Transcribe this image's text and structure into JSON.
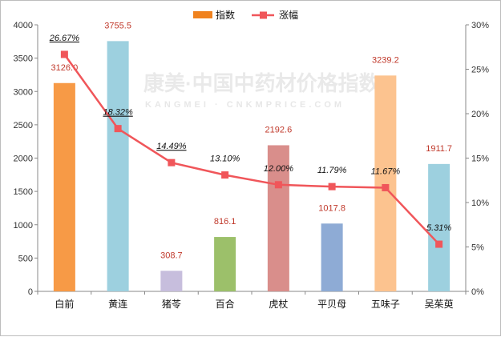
{
  "chart_data": {
    "type": "bar",
    "categories": [
      "白前",
      "黄连",
      "猪苓",
      "百合",
      "虎杖",
      "平贝母",
      "五味子",
      "吴茱萸"
    ],
    "series": [
      {
        "name": "指数",
        "type": "bar",
        "axis": "left",
        "values": [
          3126.0,
          3755.5,
          308.7,
          816.1,
          2192.6,
          1017.8,
          3239.2,
          1911.7
        ],
        "labels": [
          "3126.0",
          "3755.5",
          "308.7",
          "816.1",
          "2192.6",
          "1017.8",
          "3239.2",
          "1911.7"
        ],
        "colors": [
          "#f79a46",
          "#9dd0df",
          "#c7bedd",
          "#9cc06a",
          "#d98e8b",
          "#8eabd5",
          "#fcc38f",
          "#9dd0df"
        ]
      },
      {
        "name": "涨幅",
        "type": "line",
        "axis": "right",
        "values": [
          26.67,
          18.32,
          14.49,
          13.1,
          12.0,
          11.79,
          11.67,
          5.31
        ],
        "labels": [
          "26.67%",
          "18.32%",
          "14.49%",
          "13.10%",
          "12.00%",
          "11.79%",
          "11.67%",
          "5.31%"
        ],
        "color": "#f0565a"
      }
    ],
    "y_left": {
      "min": 0,
      "max": 4000,
      "ticks": [
        "0",
        "500",
        "1000",
        "1500",
        "2000",
        "2500",
        "3000",
        "3500",
        "4000"
      ]
    },
    "y_right": {
      "min": 0,
      "max": 30,
      "ticks": [
        "0%",
        "5%",
        "10%",
        "15%",
        "20%",
        "25%",
        "30%"
      ]
    },
    "legend": {
      "position": "top-center",
      "items": [
        "指数",
        "涨幅"
      ]
    },
    "title": "",
    "xlabel": "",
    "ylabel": ""
  },
  "watermark": {
    "text": "康美·中国中药材价格指数",
    "sub": "KANGMEI · CNKMPRICE.COM"
  }
}
